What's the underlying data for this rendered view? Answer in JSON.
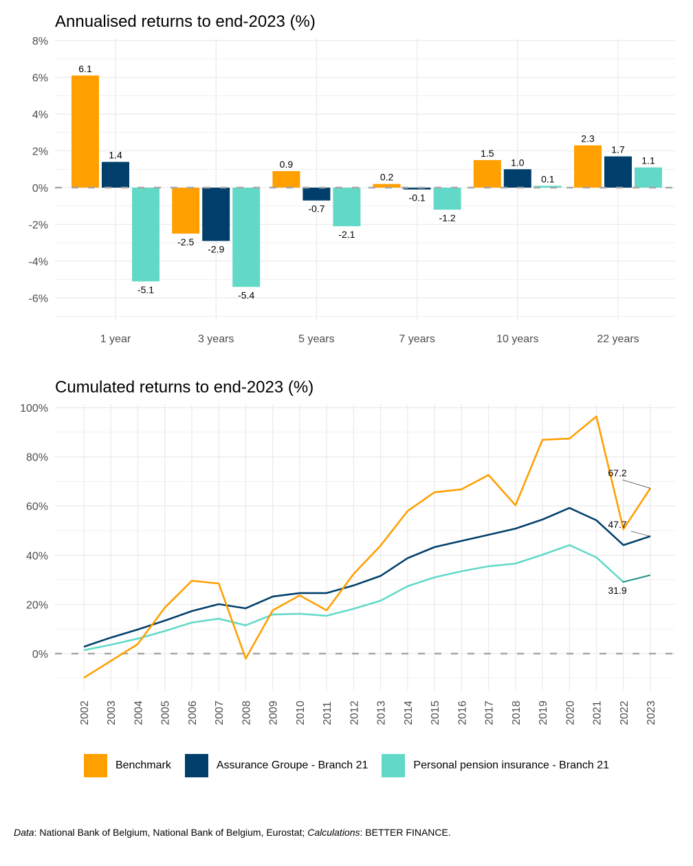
{
  "colors": {
    "benchmark": "#FF9F00",
    "assurance": "#003F6B",
    "personal": "#62D9C8",
    "grid": "#EBEBEB",
    "zero_line": "#A6A6A6"
  },
  "chart_data": [
    {
      "type": "bar",
      "title": "Annualised returns to end-2023 (%)",
      "xlabel": "",
      "ylabel": "",
      "categories": [
        "1 year",
        "3 years",
        "5 years",
        "7 years",
        "10 years",
        "22 years"
      ],
      "ylim": [
        -7,
        8
      ],
      "yticks": [
        -6,
        -4,
        -2,
        0,
        2,
        4,
        6,
        8
      ],
      "ytick_labels": [
        "-6%",
        "-4%",
        "-2%",
        "0%",
        "2%",
        "4%",
        "6%",
        "8%"
      ],
      "grid": true,
      "series": [
        {
          "name": "Benchmark",
          "key": "benchmark",
          "values": [
            6.1,
            -2.5,
            0.9,
            0.2,
            1.5,
            2.3
          ],
          "labels": [
            "6.1",
            "-2.5",
            "0.9",
            "0.2",
            "1.5",
            "2.3"
          ]
        },
        {
          "name": "Assurance Groupe - Branch 21",
          "key": "assurance",
          "values": [
            1.4,
            -2.9,
            -0.7,
            -0.1,
            1.0,
            1.7
          ],
          "labels": [
            "1.4",
            "-2.9",
            "-0.7",
            "-0.1",
            "1.0",
            "1.7"
          ]
        },
        {
          "name": "Personal pension insurance - Branch 21",
          "key": "personal",
          "values": [
            -5.1,
            -5.4,
            -2.1,
            -1.2,
            0.1,
            1.1
          ],
          "labels": [
            "-5.1",
            "-5.4",
            "-2.1",
            "-1.2",
            "0.1",
            "1.1"
          ]
        }
      ]
    },
    {
      "type": "line",
      "title": "Cumulated returns to end-2023 (%)",
      "xlabel": "",
      "ylabel": "",
      "x": [
        "2002",
        "2003",
        "2004",
        "2005",
        "2006",
        "2007",
        "2008",
        "2009",
        "2010",
        "2011",
        "2012",
        "2013",
        "2014",
        "2015",
        "2016",
        "2017",
        "2018",
        "2019",
        "2020",
        "2021",
        "2022",
        "2023"
      ],
      "ylim": [
        -15,
        100
      ],
      "yticks": [
        0,
        20,
        40,
        60,
        80,
        100
      ],
      "ytick_labels": [
        "0%",
        "20%",
        "40%",
        "60%",
        "80%",
        "100%"
      ],
      "grid": true,
      "series": [
        {
          "name": "Benchmark",
          "key": "benchmark",
          "values": [
            -9.8,
            -3.0,
            3.9,
            18.7,
            29.6,
            28.5,
            -2.0,
            17.6,
            23.7,
            17.6,
            32.4,
            43.9,
            58.0,
            65.6,
            66.8,
            72.6,
            60.3,
            86.9,
            87.4,
            96.4,
            50.6,
            67.2
          ],
          "end_label": "67.2"
        },
        {
          "name": "Assurance Groupe - Branch 21",
          "key": "assurance",
          "values": [
            2.8,
            6.5,
            9.8,
            13.4,
            17.3,
            20.1,
            18.4,
            23.2,
            24.6,
            24.6,
            27.7,
            31.6,
            38.8,
            43.3,
            45.8,
            48.3,
            50.8,
            54.5,
            59.2,
            54.2,
            44.1,
            47.7
          ],
          "end_label": "47.7"
        },
        {
          "name": "Personal pension insurance - Branch 21",
          "key": "personal",
          "values": [
            1.4,
            3.6,
            6.1,
            9.2,
            12.6,
            14.2,
            11.5,
            15.9,
            16.2,
            15.4,
            18.2,
            21.5,
            27.4,
            31.0,
            33.5,
            35.5,
            36.6,
            40.2,
            44.1,
            39.1,
            29.1,
            31.9
          ],
          "end_label": "31.9"
        }
      ]
    }
  ],
  "legend": {
    "items": [
      {
        "label": "Benchmark",
        "key": "benchmark"
      },
      {
        "label": "Assurance Groupe - Branch 21",
        "key": "assurance"
      },
      {
        "label": "Personal pension insurance - Branch 21",
        "key": "personal"
      }
    ]
  },
  "caption": {
    "data_label": "Data",
    "data_text": ": National Bank of Belgium, National Bank of Belgium, Eurostat; ",
    "calc_label": "Calculations",
    "calc_text": ": BETTER FINANCE."
  }
}
